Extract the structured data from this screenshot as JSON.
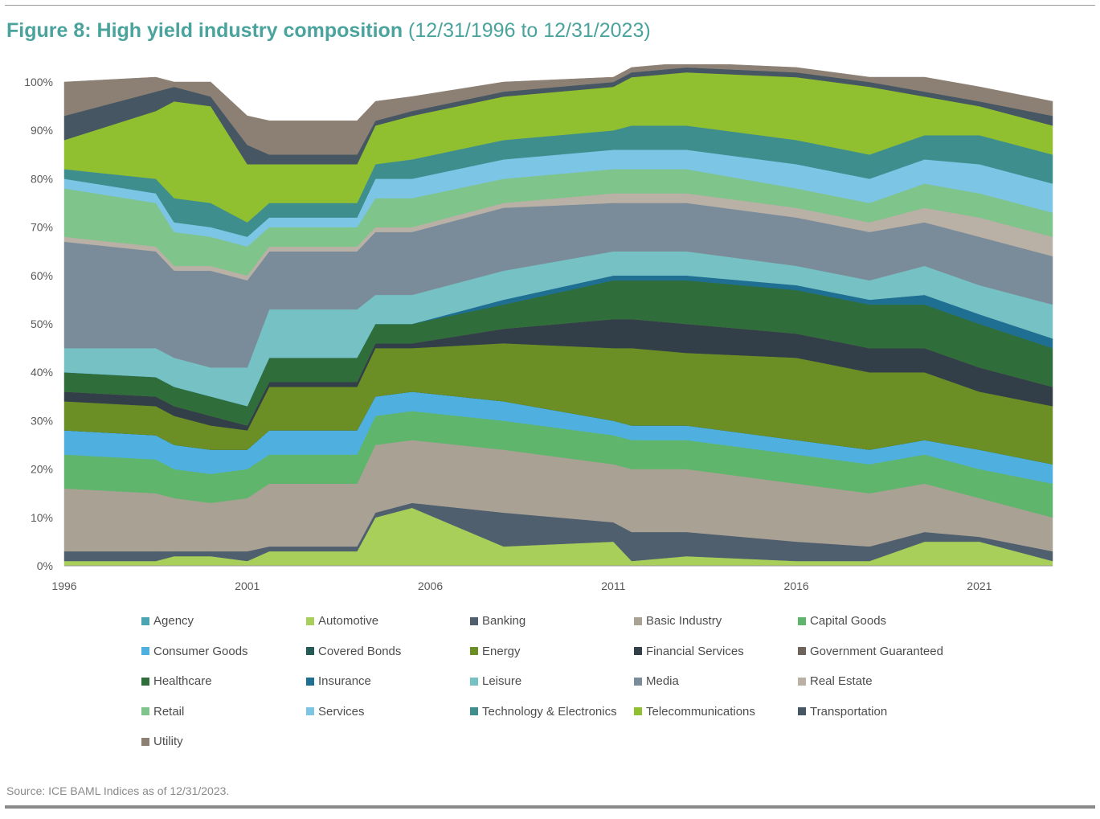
{
  "header": {
    "title_main": "Figure 8: High yield industry composition",
    "title_sub": "(12/31/1996 to 12/31/2023)"
  },
  "footer": {
    "source": "Source: ICE BAML Indices as of 12/31/2023."
  },
  "chart_data": {
    "type": "area",
    "stacked": true,
    "x": [
      1996.0,
      1998.5,
      1999.0,
      2000.0,
      2001.0,
      2001.6,
      2004.0,
      2004.5,
      2005.5,
      2008.0,
      2011.0,
      2011.5,
      2013.0,
      2016.0,
      2018.0,
      2019.5,
      2021.0,
      2023.0
    ],
    "x_ticks": [
      "1996",
      "2001",
      "2006",
      "2011",
      "2016",
      "2021"
    ],
    "x_tick_values": [
      1996,
      2001,
      2006,
      2011,
      2016,
      2021
    ],
    "xlim": [
      1996,
      2023.0
    ],
    "y_ticks": [
      "0%",
      "10%",
      "20%",
      "30%",
      "40%",
      "50%",
      "60%",
      "70%",
      "80%",
      "90%",
      "100%"
    ],
    "ylim": [
      0,
      100
    ],
    "grid": false,
    "legend_position": "bottom",
    "series": [
      {
        "name": "Agency",
        "color": "#4aa5b0",
        "values": [
          0,
          0,
          0,
          0,
          0,
          0,
          0,
          0,
          0,
          0,
          0,
          0,
          0,
          0,
          0,
          0,
          0,
          0
        ]
      },
      {
        "name": "Automotive",
        "color": "#a8cf5a",
        "values": [
          1,
          1,
          2,
          2,
          1,
          3,
          3,
          10,
          12,
          4,
          5,
          1,
          2,
          1,
          1,
          5,
          5,
          1
        ]
      },
      {
        "name": "Banking",
        "color": "#4f5f6e",
        "values": [
          2,
          2,
          1,
          1,
          2,
          1,
          1,
          1,
          1,
          7,
          4,
          6,
          5,
          4,
          3,
          2,
          1,
          2
        ]
      },
      {
        "name": "Basic Industry",
        "color": "#aaa195",
        "values": [
          13,
          12,
          11,
          10,
          11,
          13,
          13,
          14,
          13,
          13,
          12,
          13,
          13,
          12,
          11,
          10,
          8,
          7
        ]
      },
      {
        "name": "Capital Goods",
        "color": "#5eb56b",
        "values": [
          7,
          7,
          6,
          6,
          6,
          6,
          6,
          6,
          6,
          6,
          6,
          6,
          6,
          6,
          6,
          6,
          6,
          7
        ]
      },
      {
        "name": "Consumer Goods",
        "color": "#4fb0df",
        "values": [
          5,
          5,
          5,
          5,
          4,
          5,
          5,
          4,
          4,
          4,
          3,
          3,
          3,
          3,
          3,
          3,
          4,
          4
        ]
      },
      {
        "name": "Covered Bonds",
        "color": "#235a55",
        "values": [
          0,
          0,
          0,
          0,
          0,
          0,
          0,
          0,
          0,
          0,
          0,
          0,
          0,
          0,
          0,
          0,
          0,
          0
        ]
      },
      {
        "name": "Energy",
        "color": "#6b8f25",
        "values": [
          6,
          6,
          6,
          5,
          4,
          9,
          9,
          10,
          9,
          12,
          15,
          16,
          15,
          17,
          16,
          14,
          12,
          12
        ]
      },
      {
        "name": "Financial Services",
        "color": "#333f48",
        "values": [
          2,
          2,
          2,
          2,
          1,
          1,
          1,
          1,
          1,
          3,
          6,
          6,
          6,
          5,
          5,
          5,
          5,
          4
        ]
      },
      {
        "name": "Government Guaranteed",
        "color": "#6f645c",
        "values": [
          0,
          0,
          0,
          0,
          0,
          0,
          0,
          0,
          0,
          0,
          0,
          0,
          0,
          0,
          0,
          0,
          0,
          0
        ]
      },
      {
        "name": "Healthcare",
        "color": "#2f6e3a",
        "values": [
          4,
          4,
          4,
          4,
          4,
          5,
          5,
          4,
          4,
          5,
          8,
          8,
          9,
          9,
          9,
          9,
          9,
          8
        ]
      },
      {
        "name": "Insurance",
        "color": "#1f6f93",
        "values": [
          0,
          0,
          0,
          0,
          0,
          0,
          0,
          0,
          0,
          1,
          1,
          1,
          1,
          1,
          1,
          2,
          2,
          2
        ]
      },
      {
        "name": "Leisure",
        "color": "#76c1c4",
        "values": [
          5,
          6,
          6,
          6,
          8,
          10,
          10,
          6,
          6,
          6,
          5,
          5,
          5,
          4,
          4,
          6,
          6,
          7
        ]
      },
      {
        "name": "Media",
        "color": "#7a8c99",
        "values": [
          22,
          20,
          18,
          20,
          18,
          12,
          12,
          13,
          13,
          13,
          10,
          10,
          10,
          10,
          10,
          9,
          10,
          10
        ]
      },
      {
        "name": "Real Estate",
        "color": "#b9b0a6",
        "values": [
          1,
          1,
          1,
          1,
          1,
          1,
          1,
          1,
          1,
          1,
          2,
          2,
          2,
          2,
          2,
          3,
          4,
          4
        ]
      },
      {
        "name": "Retail",
        "color": "#7fc48a",
        "values": [
          10,
          9,
          7,
          6,
          6,
          4,
          4,
          6,
          6,
          5,
          5,
          5,
          5,
          4,
          4,
          5,
          5,
          5
        ]
      },
      {
        "name": "Services",
        "color": "#7cc5e5",
        "values": [
          2,
          2,
          2,
          2,
          2,
          2,
          2,
          4,
          4,
          4,
          4,
          4,
          4,
          5,
          5,
          5,
          6,
          6
        ]
      },
      {
        "name": "Technology & Electronics",
        "color": "#3e8e8e",
        "values": [
          2,
          3,
          5,
          5,
          3,
          3,
          3,
          3,
          4,
          4,
          4,
          5,
          5,
          5,
          5,
          5,
          6,
          6
        ]
      },
      {
        "name": "Telecommunications",
        "color": "#90c030",
        "values": [
          6,
          14,
          20,
          20,
          12,
          8,
          8,
          8,
          9,
          9,
          9,
          10,
          11,
          13,
          14,
          8,
          6,
          6
        ]
      },
      {
        "name": "Transportation",
        "color": "#465663",
        "values": [
          5,
          4,
          3,
          2,
          4,
          2,
          2,
          1,
          1,
          1,
          1,
          1,
          1,
          1,
          1,
          1,
          1,
          2
        ]
      },
      {
        "name": "Utility",
        "color": "#8c8074",
        "values": [
          7,
          3,
          1,
          3,
          6,
          7,
          7,
          4,
          3,
          2,
          1,
          1,
          1,
          1,
          1,
          3,
          3,
          3
        ]
      }
    ]
  }
}
